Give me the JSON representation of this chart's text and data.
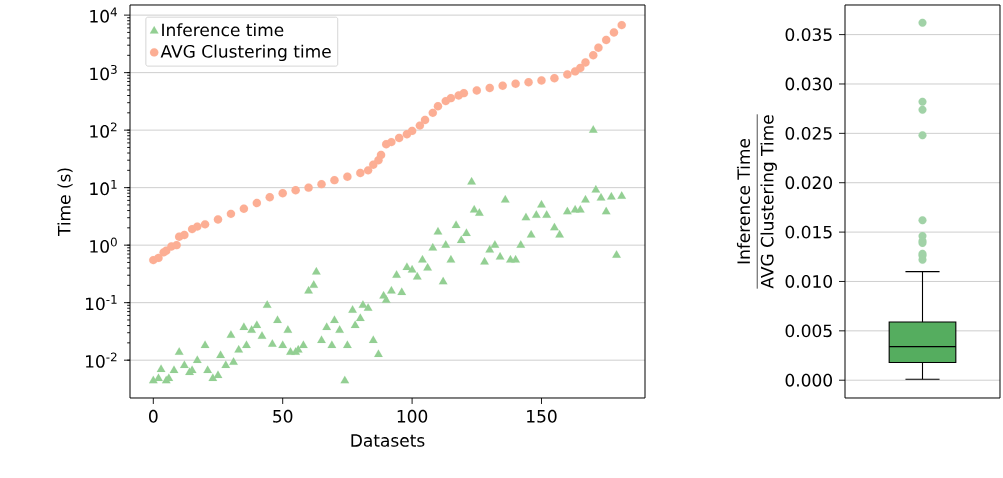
{
  "chart_data": [
    {
      "type": "scatter",
      "xlabel": "Datasets",
      "ylabel": "Time (s)",
      "log": "y",
      "grid": "y",
      "legend": "top left",
      "xlim": [
        -9,
        190
      ],
      "xticks": [
        0,
        50,
        100,
        150
      ],
      "ylim": [
        0.0022,
        15000
      ],
      "yticks": [
        {
          "value": 0.01,
          "label": "10$^{-2}$"
        },
        {
          "value": 0.1,
          "label": "10$^{-1}$"
        },
        {
          "value": 1,
          "label": "10$^{0}$"
        },
        {
          "value": 10,
          "label": "10$^{1}$"
        },
        {
          "value": 100,
          "label": "10$^{2}$"
        },
        {
          "value": 1000,
          "label": "10$^{3}$"
        },
        {
          "value": 10000,
          "label": "10$^{4}$"
        }
      ],
      "series": [
        {
          "name": "Inference time",
          "color": "#93cf93",
          "marker": "triangle",
          "x": [
            0,
            2,
            3,
            5,
            6,
            8,
            10,
            12,
            14,
            15,
            17,
            20,
            21,
            23,
            25,
            26,
            28,
            30,
            31,
            33,
            35,
            36,
            38,
            40,
            42,
            44,
            46,
            48,
            50,
            52,
            53,
            55,
            56,
            58,
            60,
            62,
            63,
            65,
            67,
            69,
            70,
            72,
            74,
            75,
            77,
            78,
            80,
            81,
            83,
            85,
            87,
            89,
            90,
            92,
            94,
            96,
            98,
            100,
            102,
            104,
            106,
            108,
            110,
            112,
            113,
            115,
            117,
            119,
            121,
            123,
            124,
            126,
            128,
            130,
            132,
            134,
            136,
            138,
            140,
            142,
            144,
            146,
            148,
            150,
            152,
            155,
            157,
            160,
            163,
            165,
            167,
            170,
            171,
            173,
            175,
            177,
            179,
            181
          ],
          "values": [
            0.0044,
            0.0048,
            0.0069,
            0.0044,
            0.0048,
            0.0066,
            0.0137,
            0.0081,
            0.0061,
            0.0066,
            0.0099,
            0.018,
            0.0066,
            0.0048,
            0.0054,
            0.012,
            0.0081,
            0.027,
            0.0092,
            0.015,
            0.037,
            0.018,
            0.033,
            0.04,
            0.026,
            0.09,
            0.019,
            0.049,
            0.018,
            0.033,
            0.0137,
            0.0137,
            0.015,
            0.018,
            0.16,
            0.2,
            0.34,
            0.022,
            0.037,
            0.018,
            0.049,
            0.033,
            0.0044,
            0.018,
            0.074,
            0.04,
            0.053,
            0.09,
            0.08,
            0.022,
            0.0126,
            0.13,
            0.11,
            0.16,
            0.3,
            0.15,
            0.41,
            0.37,
            0.28,
            0.55,
            0.4,
            0.89,
            1.7,
            0.23,
            1,
            0.55,
            2.2,
            1.2,
            1.6,
            12.5,
            4.1,
            3.6,
            0.51,
            0.82,
            1,
            0.62,
            6.1,
            0.55,
            0.55,
            1,
            3,
            1.5,
            3.3,
            5,
            3.3,
            2,
            1.5,
            3.8,
            4.1,
            4.1,
            6.1,
            100,
            9.1,
            6.6,
            3.8,
            6.9,
            0.67,
            7.1
          ]
        },
        {
          "name": "AVG Clustering time",
          "color": "#fcae94",
          "marker": "circle",
          "x": [
            0,
            2,
            4,
            5,
            7,
            9,
            10,
            12,
            15,
            17,
            20,
            25,
            30,
            35,
            40,
            45,
            50,
            55,
            60,
            65,
            70,
            75,
            80,
            83,
            85,
            87,
            88,
            90,
            92,
            95,
            98,
            100,
            103,
            105,
            108,
            110,
            113,
            115,
            118,
            120,
            125,
            130,
            135,
            140,
            145,
            150,
            155,
            160,
            163,
            165,
            167,
            170,
            172,
            175,
            178,
            181
          ],
          "values": [
            0.55,
            0.6,
            0.75,
            0.8,
            0.95,
            1.0,
            1.4,
            1.5,
            1.9,
            2.1,
            2.3,
            2.8,
            3.5,
            4.3,
            5.4,
            6.8,
            8,
            9,
            10,
            11.5,
            13.5,
            15.5,
            18,
            20,
            25,
            30,
            37,
            57,
            62,
            73,
            85,
            97,
            120,
            150,
            200,
            260,
            320,
            360,
            400,
            440,
            490,
            540,
            590,
            640,
            680,
            730,
            800,
            930,
            1050,
            1200,
            1500,
            2000,
            2700,
            3700,
            5000,
            6700
          ]
        }
      ]
    },
    {
      "type": "box",
      "ylabel": "\\frac{\\text{Inference Time}}{\\text{AVG Clustering Time}}",
      "grid": "y",
      "tick_labels": "y",
      "categories": [
        null
      ],
      "color": "#55ad5f",
      "ylim": [
        -0.0018,
        0.038
      ],
      "yticks": [
        {
          "value": 0,
          "label": "0.000"
        },
        {
          "value": 0.005,
          "label": "0.005"
        },
        {
          "value": 0.01,
          "label": "0.010"
        },
        {
          "value": 0.015,
          "label": "0.015"
        },
        {
          "value": 0.02,
          "label": "0.020"
        },
        {
          "value": 0.025,
          "label": "0.025"
        },
        {
          "value": 0.03,
          "label": "0.030"
        },
        {
          "value": 0.035,
          "label": "0.035"
        }
      ],
      "boxes": [
        {
          "low": 0.0001,
          "q1": 0.0018,
          "median": 0.0034,
          "q3": 0.0059,
          "high": 0.011,
          "outliers": [
            0.0362,
            0.0282,
            0.0274,
            0.0248,
            0.0162,
            0.0146,
            0.0141,
            0.0139,
            0.0128,
            0.0126,
            0.0122
          ]
        }
      ]
    }
  ]
}
